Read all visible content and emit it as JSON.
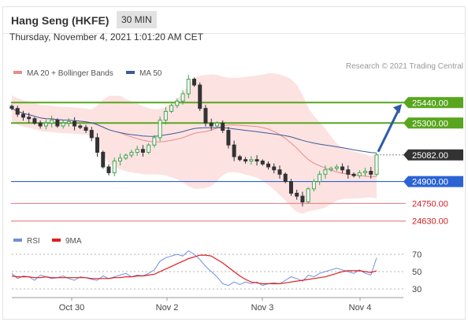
{
  "header": {
    "title": "Hang Seng (HKFE)",
    "timeframe": "30 MIN"
  },
  "datetime": "Thursday, November 4, 2021 1:01:20 AM CET",
  "credit": "Research © 2021 Trading Central",
  "colors": {
    "support_resistance_green": "#58a61e",
    "pivot_blue": "#2b63d4",
    "target_red": "#e8888b",
    "last_price_tag": "#333333",
    "arrow": "#2e5aa6",
    "ma20": "#e88c8c",
    "ma50": "#3d5a99",
    "bollinger_fill": "#fde2e2",
    "rsi": "#6e8fe0",
    "rsi_9ma": "#e01e1e"
  },
  "legend": {
    "ma20_label": "MA 20 + Bollinger Bands",
    "ma50_label": "MA 50",
    "rsi_label": "RSI",
    "rsi_ma_label": "9MA"
  },
  "chart_data": [
    {
      "type": "candlestick",
      "title": "Hang Seng (HKFE) 30 MIN",
      "x_ticks": [
        "Oct 30",
        "Nov 2",
        "Nov 3",
        "Nov 4"
      ],
      "ylim": [
        24580,
        25560
      ],
      "price_levels": [
        {
          "value": 25440.0,
          "label": "25440.00",
          "kind": "resistance"
        },
        {
          "value": 25300.0,
          "label": "25300.00",
          "kind": "resistance"
        },
        {
          "value": 25082.0,
          "label": "25082.00",
          "kind": "last-price"
        },
        {
          "value": 24900.0,
          "label": "24900.00",
          "kind": "pivot"
        },
        {
          "value": 24750.0,
          "label": "24750.00",
          "kind": "support"
        },
        {
          "value": 24630.0,
          "label": "24630.00",
          "kind": "support"
        }
      ],
      "close_series": [
        25400,
        25360,
        25340,
        25330,
        25300,
        25280,
        25300,
        25320,
        25280,
        25300,
        25310,
        25280,
        25270,
        25250,
        25200,
        25100,
        25000,
        24960,
        25040,
        25060,
        25080,
        25100,
        25120,
        25100,
        25150,
        25200,
        25320,
        25380,
        25420,
        25450,
        25500,
        25600,
        25560,
        25400,
        25300,
        25280,
        25300,
        25250,
        25150,
        25070,
        25050,
        25040,
        25050,
        25040,
        25020,
        25000,
        24980,
        24950,
        24900,
        24820,
        24800,
        24760,
        24850,
        24900,
        24950,
        24980,
        24990,
        25000,
        24980,
        24950,
        24940,
        24960,
        24970,
        24950,
        25082
      ]
    },
    {
      "type": "line",
      "title": "RSI",
      "ylim": [
        20,
        80
      ],
      "y_ticks": [
        70,
        50,
        30
      ],
      "series": [
        {
          "name": "RSI",
          "values": [
            48,
            42,
            45,
            44,
            40,
            46,
            44,
            42,
            43,
            45,
            42,
            40,
            44,
            43,
            41,
            40,
            45,
            42,
            44,
            46,
            48,
            44,
            46,
            45,
            48,
            52,
            62,
            66,
            68,
            70,
            68,
            74,
            70,
            64,
            56,
            50,
            44,
            36,
            34,
            38,
            35,
            38,
            36,
            38,
            34,
            36,
            37,
            36,
            40,
            44,
            42,
            39,
            46,
            44,
            48,
            50,
            52,
            54,
            52,
            50,
            48,
            52,
            48,
            46,
            66
          ]
        },
        {
          "name": "9MA",
          "values": [
            45,
            44,
            44,
            44,
            43,
            43,
            44,
            43,
            43,
            43,
            43,
            43,
            43,
            43,
            42,
            42,
            42,
            42,
            43,
            43,
            44,
            44,
            45,
            45,
            46,
            47,
            50,
            53,
            56,
            59,
            62,
            65,
            67,
            69,
            69,
            68,
            64,
            60,
            55,
            50,
            45,
            41,
            38,
            37,
            36,
            36,
            36,
            36,
            37,
            38,
            39,
            40,
            41,
            42,
            43,
            44,
            46,
            48,
            50,
            51,
            51,
            51,
            50,
            49,
            51
          ]
        }
      ]
    }
  ]
}
